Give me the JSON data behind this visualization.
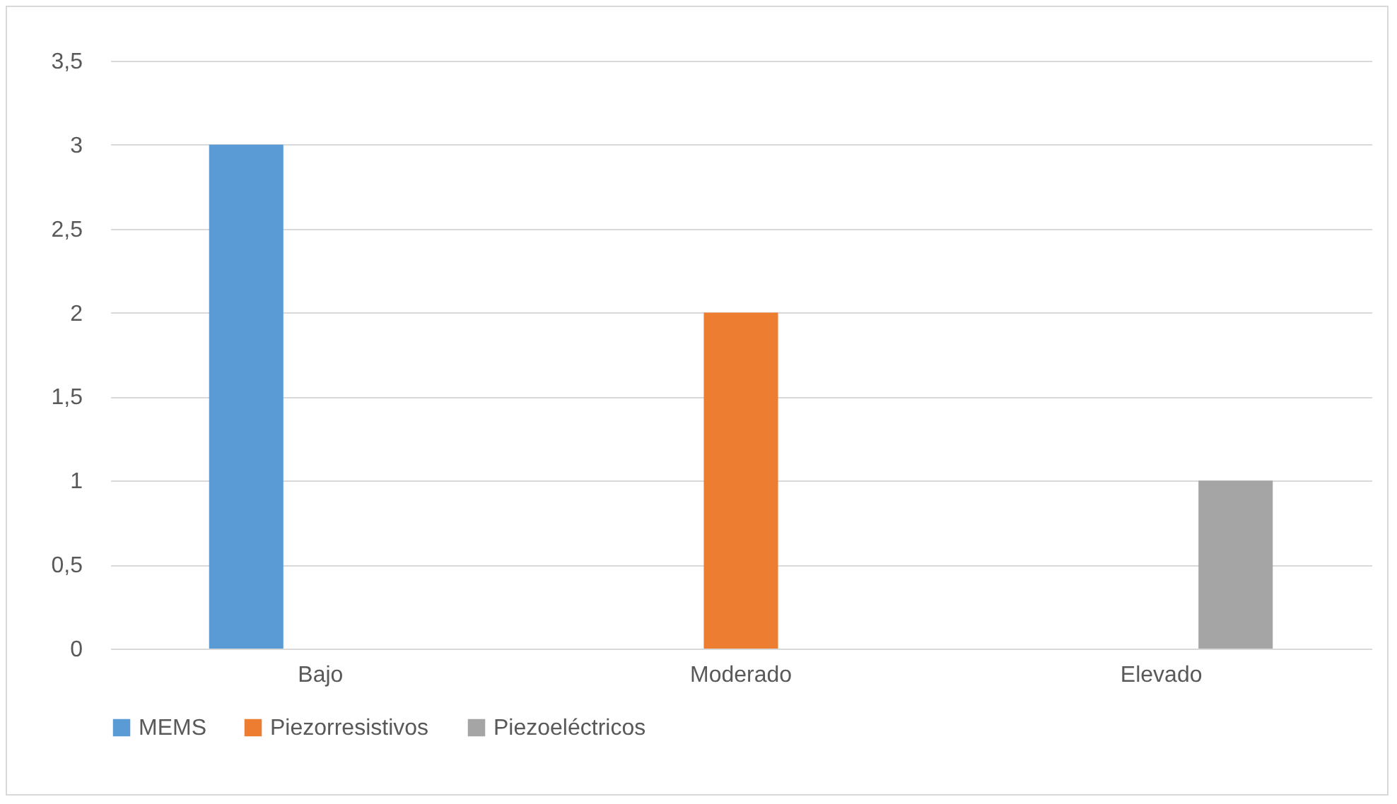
{
  "chart_data": {
    "type": "bar",
    "categories": [
      "Bajo",
      "Moderado",
      "Elevado"
    ],
    "series": [
      {
        "name": "MEMS",
        "color": "#5b9bd5",
        "values": [
          3,
          0,
          0
        ]
      },
      {
        "name": "Piezorresistivos",
        "color": "#ed7d31",
        "values": [
          0,
          2,
          0
        ]
      },
      {
        "name": "Piezoeléctricos",
        "color": "#a5a5a5",
        "values": [
          0,
          0,
          1
        ]
      }
    ],
    "ylim": [
      0,
      3.5
    ],
    "yticks": [
      0,
      {
        "value": 0.5,
        "label": "0,5"
      },
      1,
      {
        "value": 1.5,
        "label": "1,5"
      },
      2,
      {
        "value": 2.5,
        "label": "2,5"
      },
      3,
      {
        "value": 3.5,
        "label": "3,5"
      }
    ],
    "grid": "y",
    "legend": "bottom"
  }
}
